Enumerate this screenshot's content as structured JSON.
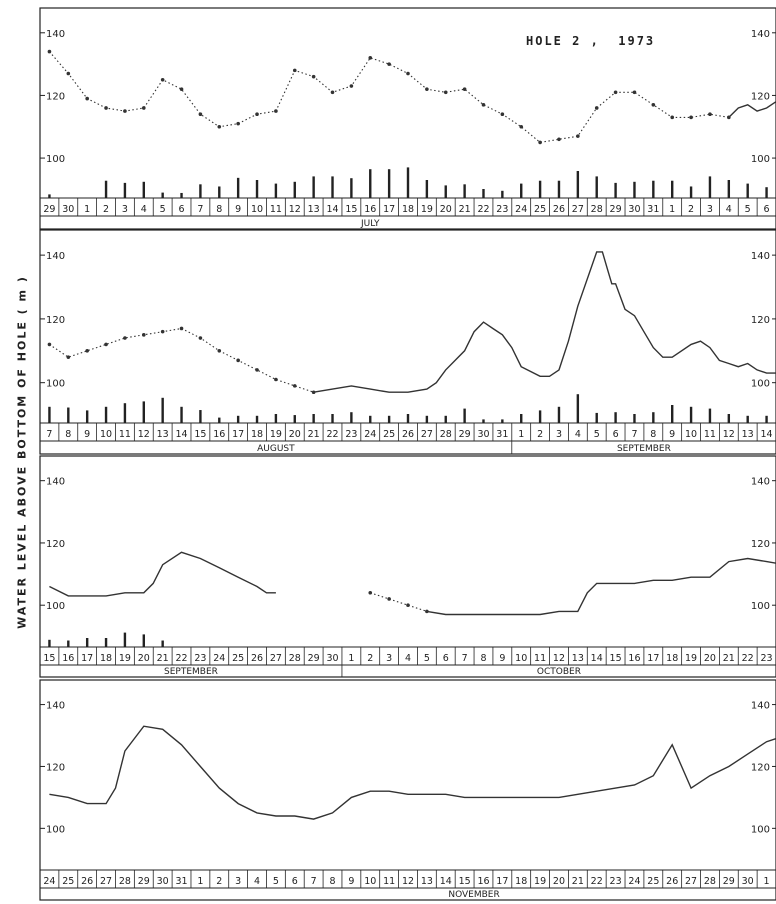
{
  "title": "HOLE 2 ,  1973",
  "ylabel": "WATER LEVEL ABOVE BOTTOM OF HOLE    ( m )",
  "colors": {
    "line": "#333333",
    "frame": "#222222",
    "background": "#ffffff"
  },
  "chart_data": [
    {
      "type": "line",
      "ylim": [
        93,
        146
      ],
      "yticks": [
        100,
        120,
        140
      ],
      "days": [
        "29",
        "30",
        "1",
        "2",
        "3",
        "4",
        "5",
        "6",
        "7",
        "8",
        "9",
        "10",
        "11",
        "12",
        "13",
        "14",
        "15",
        "16",
        "17",
        "18",
        "19",
        "20",
        "21",
        "22",
        "23",
        "24",
        "25",
        "26",
        "27",
        "28",
        "29",
        "30",
        "31",
        "1",
        "2",
        "3",
        "4",
        "5",
        "6"
      ],
      "months": [
        {
          "label": "JULY",
          "start": 2,
          "end": 33
        }
      ],
      "series": [
        {
          "style": "dotted",
          "x": [
            0,
            1,
            2,
            3,
            4,
            5,
            6,
            7,
            8,
            9,
            10,
            11,
            12,
            13,
            14,
            15,
            16,
            17,
            18,
            19,
            20,
            21,
            22,
            23,
            24,
            25,
            26,
            27,
            28,
            29,
            30,
            31,
            32,
            33,
            34,
            35,
            36
          ],
          "y": [
            134,
            127,
            119,
            116,
            115,
            116,
            125,
            122,
            114,
            110,
            111,
            114,
            115,
            128,
            126,
            121,
            123,
            132,
            130,
            127,
            122,
            121,
            122,
            117,
            114,
            110,
            105,
            106,
            107,
            116,
            121,
            121,
            117,
            113,
            113,
            114,
            113
          ]
        },
        {
          "style": "solid",
          "x": [
            36,
            36.5,
            37,
            37.5,
            38,
            38.5,
            39
          ],
          "y": [
            113,
            116,
            117,
            115,
            116,
            118,
            116
          ]
        }
      ],
      "bars": [
        1.0,
        0,
        0,
        4.8,
        4.2,
        4.5,
        1.5,
        1.4,
        3.8,
        3.2,
        5.6,
        5.0,
        4.0,
        4.5,
        6.0,
        6.0,
        5.5,
        8.0,
        8.0,
        8.5,
        5.0,
        3.5,
        3.8,
        2.5,
        2.0,
        4.0,
        4.8,
        4.8,
        7.5,
        6.0,
        4.2,
        4.5,
        4.8,
        4.8,
        3.2,
        6.0,
        5.0,
        4.0,
        3.0
      ]
    },
    {
      "type": "line",
      "ylim": [
        93,
        146
      ],
      "yticks": [
        100,
        120,
        140
      ],
      "days": [
        "7",
        "8",
        "9",
        "10",
        "11",
        "12",
        "13",
        "14",
        "15",
        "16",
        "17",
        "18",
        "19",
        "20",
        "21",
        "22",
        "23",
        "24",
        "25",
        "26",
        "27",
        "28",
        "29",
        "30",
        "31",
        "1",
        "2",
        "3",
        "4",
        "5",
        "6",
        "7",
        "8",
        "9",
        "10",
        "11",
        "12",
        "13",
        "14"
      ],
      "months": [
        {
          "label": "AUGUST",
          "start": 0,
          "end": 25
        },
        {
          "label": "SEPTEMBER",
          "start": 25,
          "end": 39
        }
      ],
      "series": [
        {
          "style": "dotted",
          "x": [
            0,
            1,
            2,
            3,
            4,
            5,
            6,
            7,
            8,
            9,
            10,
            11,
            12,
            13,
            14
          ],
          "y": [
            112,
            108,
            110,
            112,
            114,
            115,
            116,
            117,
            114,
            110,
            107,
            104,
            101,
            99,
            97
          ]
        },
        {
          "style": "solid",
          "x": [
            14,
            15,
            16,
            17,
            18,
            19,
            20,
            20.5,
            21,
            22,
            22.5,
            23,
            23.5,
            24,
            24.5,
            25,
            26,
            26.5,
            27,
            27.5,
            28,
            29,
            29.3,
            29.6,
            29.8,
            30,
            30.5,
            31,
            31.5,
            32,
            32.5,
            33,
            34,
            34.5,
            35,
            35.5,
            36,
            36.5,
            37,
            37.5,
            38,
            39
          ],
          "y": [
            97,
            98,
            99,
            98,
            97,
            97,
            98,
            100,
            104,
            110,
            116,
            119,
            117,
            115,
            111,
            105,
            102,
            102,
            104,
            113,
            124,
            141,
            141,
            135,
            131,
            131,
            123,
            121,
            116,
            111,
            108,
            108,
            112,
            113,
            111,
            107,
            106,
            105,
            106,
            104,
            103,
            103
          ]
        }
      ],
      "bars": [
        4.5,
        4.3,
        3.5,
        4.5,
        5.5,
        6.0,
        7.0,
        4.5,
        3.6,
        1.5,
        2.0,
        2.0,
        2.5,
        2.2,
        2.5,
        2.5,
        3.0,
        2.0,
        2.0,
        2.5,
        2.0,
        2.0,
        4.0,
        1.0,
        1.0,
        2.5,
        3.5,
        4.5,
        8.0,
        2.8,
        3.0,
        2.5,
        3.0,
        5.0,
        4.5,
        4.0,
        2.5,
        2.0,
        2.0
      ]
    },
    {
      "type": "line",
      "ylim": [
        93,
        146
      ],
      "yticks": [
        100,
        120,
        140
      ],
      "days": [
        "15",
        "16",
        "17",
        "18",
        "19",
        "20",
        "21",
        "22",
        "23",
        "24",
        "25",
        "26",
        "27",
        "28",
        "29",
        "30",
        "1",
        "2",
        "3",
        "4",
        "5",
        "6",
        "7",
        "8",
        "9",
        "10",
        "11",
        "12",
        "13",
        "14",
        "15",
        "16",
        "17",
        "18",
        "19",
        "20",
        "21",
        "22",
        "23"
      ],
      "months": [
        {
          "label": "SEPTEMBER",
          "start": 0,
          "end": 16
        },
        {
          "label": "OCTOBER",
          "start": 16,
          "end": 39
        }
      ],
      "series": [
        {
          "style": "solid",
          "x": [
            0,
            1,
            2,
            3,
            4,
            5,
            5.5,
            6,
            7,
            8,
            9,
            10,
            11,
            11.5,
            12
          ],
          "y": [
            106,
            103,
            103,
            103,
            104,
            104,
            107,
            113,
            117,
            115,
            112,
            109,
            106,
            104,
            104
          ]
        },
        {
          "style": "dotted",
          "x": [
            17,
            18,
            19,
            20
          ],
          "y": [
            104,
            102,
            100,
            98
          ]
        },
        {
          "style": "solid",
          "x": [
            20,
            21,
            22,
            23,
            24,
            25,
            26,
            27,
            28,
            28.5,
            29,
            30,
            31,
            32,
            33,
            34,
            35,
            36,
            37,
            38,
            39
          ],
          "y": [
            98,
            97,
            97,
            97,
            97,
            97,
            97,
            98,
            98,
            104,
            107,
            107,
            107,
            108,
            108,
            109,
            109,
            114,
            115,
            114,
            113
          ]
        }
      ],
      "bars": [
        2.0,
        1.8,
        2.5,
        2.5,
        4.0,
        3.5,
        1.8,
        0,
        0,
        0,
        0,
        0,
        0,
        0,
        0,
        0,
        0,
        0,
        0,
        0,
        0,
        0,
        0,
        0,
        0,
        0,
        0,
        0,
        0,
        0,
        0,
        0,
        0,
        0,
        0,
        0,
        0,
        0,
        0
      ]
    },
    {
      "type": "line",
      "ylim": [
        93,
        146
      ],
      "yticks": [
        100,
        120,
        140
      ],
      "days": [
        "24",
        "25",
        "26",
        "27",
        "28",
        "29",
        "30",
        "31",
        "1",
        "2",
        "3",
        "4",
        "5",
        "6",
        "7",
        "8",
        "9",
        "10",
        "11",
        "12",
        "13",
        "14",
        "15",
        "16",
        "17",
        "18",
        "19",
        "20",
        "21",
        "22",
        "23",
        "24",
        "25",
        "26",
        "27",
        "28",
        "29",
        "30",
        "1"
      ],
      "months": [
        {
          "label": "NOVEMBER",
          "start": 8,
          "end": 38
        }
      ],
      "series": [
        {
          "style": "solid",
          "x": [
            0,
            1,
            2,
            3,
            3.5,
            4,
            5,
            6,
            7,
            8,
            9,
            10,
            11,
            12,
            13,
            14,
            15,
            16,
            17,
            18,
            19,
            20,
            21,
            22,
            23,
            24,
            25,
            26,
            27,
            28,
            29,
            30,
            31,
            32,
            33,
            34,
            35,
            36,
            37,
            38,
            39
          ],
          "y": [
            111,
            110,
            108,
            108,
            113,
            125,
            133,
            132,
            127,
            120,
            113,
            108,
            105,
            104,
            104,
            103,
            105,
            110,
            112,
            112,
            111,
            111,
            111,
            110,
            110,
            110,
            110,
            110,
            110,
            111,
            112,
            113,
            114,
            117,
            127,
            113,
            117,
            120,
            124,
            128,
            130
          ]
        }
      ],
      "bars": []
    }
  ]
}
